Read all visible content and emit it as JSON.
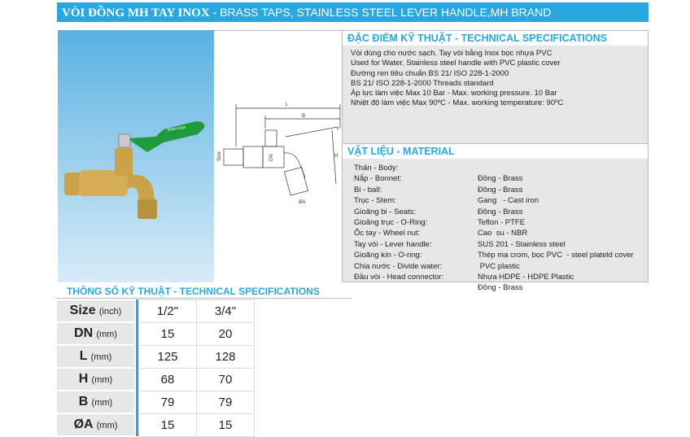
{
  "title": {
    "vn": "VÒI ĐỒNG MH TAY INOX - ",
    "en": "BRASS  TAPS, STAINLESS STEEL LEVER HANDLE,MH BRAND"
  },
  "photo": {
    "brand_on_handle": "MINH HOA"
  },
  "drawing": {
    "labels": {
      "L": "L",
      "B": "B",
      "H": "H",
      "size": "Size",
      "dn": "DN",
      "a": "ØA"
    }
  },
  "specs": {
    "heading": "ĐẶC ĐIỂM KỸ THUẬT - TECHNICAL SPECIFICATIONS",
    "lines": [
      "Vòi dùng cho nước sạch. Tay vòi bằng Inox bọc nhựa PVC",
      "Used for Water. Stainless steel handle with PVC plastic cover",
      "Đường ren tiêu chuẩn BS 21/ ISO 228-1-2000",
      "BS 21/ ISO 228-1-2000 Threads standard",
      "Áp lực làm việc Max 10 Bar - Max. working pressure. 10 Bar",
      "Nhiệt độ làm việc Max 90ºC - Max. working temperature: 90ºC"
    ]
  },
  "material": {
    "heading": "VẬT LIỆU - MATERIAL",
    "rows": [
      [
        "Thân - Body:",
        "Đồng - Brass"
      ],
      [
        "Nắp - Bonnet:",
        "Đồng - Brass"
      ],
      [
        "Bi - ball:",
        "Gang   - Cast iron"
      ],
      [
        "Trục - Stem:",
        "Đồng - Brass"
      ],
      [
        "Gioăng bi - Seats:",
        "Teflon - PTFE"
      ],
      [
        "Gioăng trục - O-Ring:",
        "Cao  su - NBR"
      ],
      [
        "Ốc tay - Wheel nut:",
        "SUS 201 - Stainless steel"
      ],
      [
        "Tay vòi - Lever handle:",
        "Thép mạ crom, bọc PVC  - steel plateld cover"
      ],
      [
        "Gioăng kín - O-ring:",
        " PVC plastic"
      ],
      [
        "Chia nước - Divide water:",
        "Nhựa HDPE - HDPE Plastic"
      ],
      [
        "Đầu vòi - Head connector:",
        "Đồng - Brass"
      ]
    ]
  },
  "table": {
    "heading": "THÔNG SỐ KỸ THUẬT - TECHNICAL SPECIFICATIONS",
    "rows": [
      {
        "name": "Size",
        "unit": "(inch)",
        "v": [
          "1/2\"",
          "3/4\""
        ]
      },
      {
        "name": "DN",
        "unit": "(mm)",
        "v": [
          "15",
          "20"
        ]
      },
      {
        "name": "L",
        "unit": "(mm)",
        "v": [
          "125",
          "128"
        ]
      },
      {
        "name": "H",
        "unit": "(mm)",
        "v": [
          "68",
          "70"
        ]
      },
      {
        "name": "B",
        "unit": "(mm)",
        "v": [
          "79",
          "79"
        ]
      },
      {
        "name": "ØA",
        "unit": "(mm)",
        "v": [
          "15",
          "15"
        ]
      }
    ]
  },
  "colors": {
    "accent": "#29a8df",
    "panel": "#e6e7e8",
    "handle": "#1f9a3c",
    "brass": "#c9a24a"
  }
}
